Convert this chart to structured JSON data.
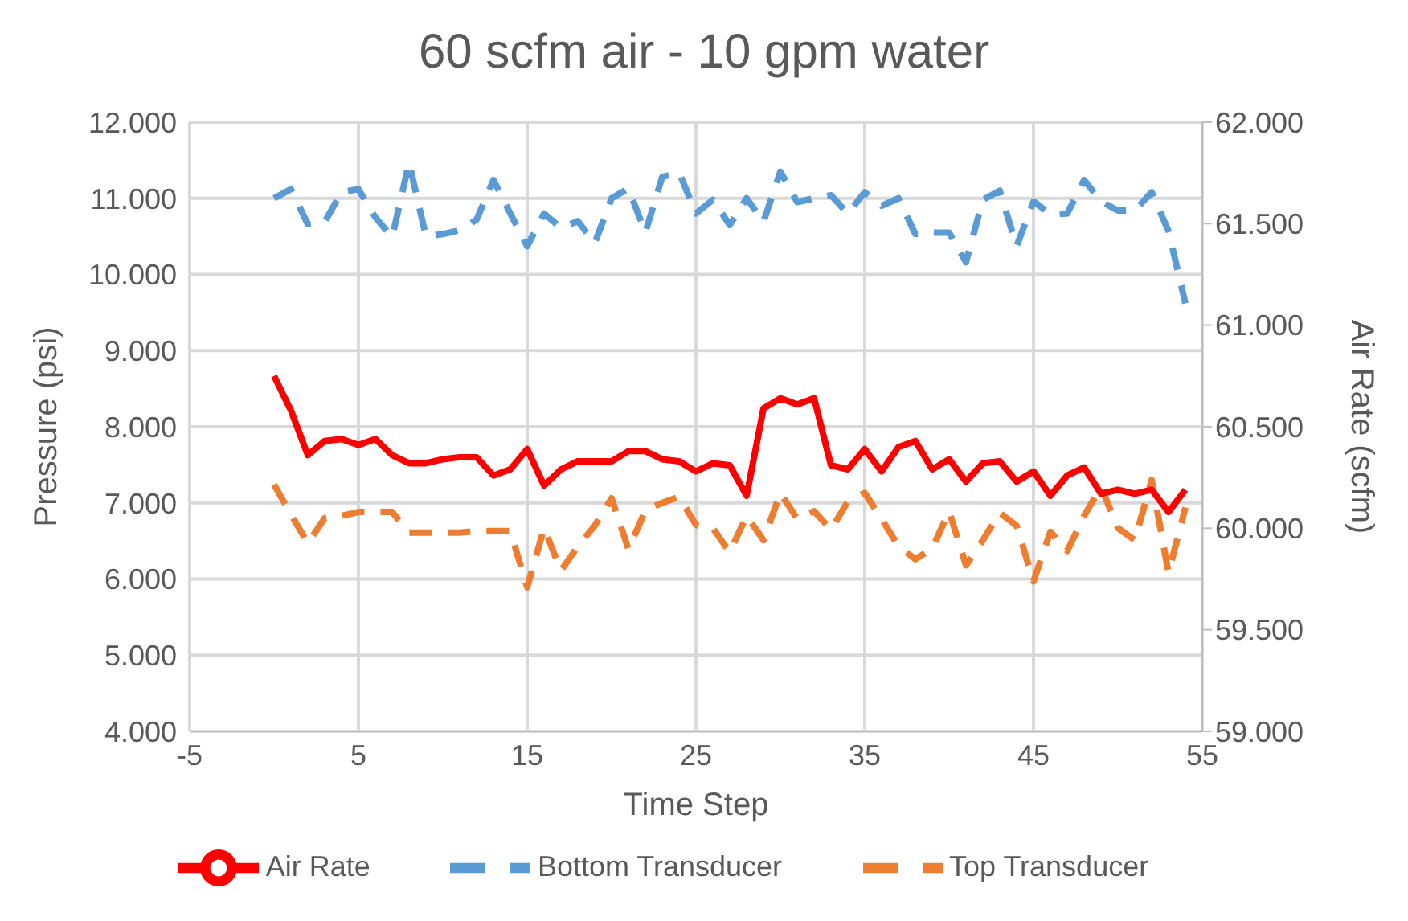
{
  "chart_data": {
    "type": "line",
    "title": "60 scfm air - 10 gpm water",
    "xlabel": "Time Step",
    "ylabel": "Pressure (psi)",
    "y2label": "Air Rate (scfm)",
    "x": [
      0,
      1,
      2,
      3,
      4,
      5,
      6,
      7,
      8,
      9,
      10,
      11,
      12,
      13,
      14,
      15,
      16,
      17,
      18,
      19,
      20,
      21,
      22,
      23,
      24,
      25,
      26,
      27,
      28,
      29,
      30,
      31,
      32,
      33,
      34,
      35,
      36,
      37,
      38,
      39,
      40,
      41,
      42,
      43,
      44,
      45,
      46,
      47,
      48,
      49,
      50,
      51,
      52,
      53,
      54
    ],
    "series": [
      {
        "name": "Bottom Transducer",
        "color": "#5b9bd5",
        "line_style": "dashed",
        "values": [
          11.0,
          11.12,
          10.66,
          10.69,
          11.08,
          11.12,
          10.75,
          10.49,
          11.47,
          10.5,
          10.53,
          10.58,
          10.72,
          11.24,
          10.8,
          10.37,
          10.8,
          10.61,
          10.7,
          10.41,
          11.0,
          11.13,
          10.55,
          11.28,
          11.34,
          10.8,
          10.98,
          10.65,
          11.0,
          10.69,
          11.35,
          10.95,
          11.0,
          11.04,
          10.8,
          11.08,
          10.9,
          11.0,
          10.53,
          10.55,
          10.55,
          10.16,
          10.98,
          11.1,
          10.37,
          10.96,
          10.79,
          10.8,
          11.24,
          10.96,
          10.84,
          10.84,
          11.08,
          10.57,
          9.62
        ]
      },
      {
        "name": "Top Transducer",
        "color": "#ed7d31",
        "line_style": "dashed",
        "values": [
          7.24,
          6.85,
          6.47,
          6.8,
          6.83,
          6.88,
          6.88,
          6.88,
          6.61,
          6.61,
          6.61,
          6.61,
          6.63,
          6.63,
          6.63,
          5.89,
          6.67,
          6.11,
          6.43,
          6.7,
          7.06,
          6.39,
          6.9,
          7.0,
          7.08,
          6.71,
          6.67,
          6.35,
          6.83,
          6.51,
          7.13,
          6.79,
          6.89,
          6.65,
          7.02,
          7.13,
          6.79,
          6.43,
          6.26,
          6.4,
          6.89,
          6.18,
          6.51,
          6.87,
          6.7,
          5.97,
          6.62,
          6.37,
          6.83,
          7.21,
          6.67,
          6.51,
          7.3,
          6.08,
          6.94
        ]
      },
      {
        "name": "Air Rate",
        "color": "#ff0000",
        "line_style": "solid",
        "axis": "y2",
        "values": [
          60.75,
          60.58,
          60.36,
          60.43,
          60.44,
          60.41,
          60.44,
          60.36,
          60.32,
          60.32,
          60.34,
          60.35,
          60.35,
          60.26,
          60.29,
          60.39,
          60.21,
          60.29,
          60.33,
          60.33,
          60.33,
          60.38,
          60.38,
          60.34,
          60.33,
          60.28,
          60.32,
          60.31,
          60.16,
          60.59,
          60.64,
          60.61,
          60.64,
          60.31,
          60.29,
          60.39,
          60.28,
          60.4,
          60.43,
          60.29,
          60.34,
          60.23,
          60.32,
          60.33,
          60.23,
          60.28,
          60.16,
          60.26,
          60.3,
          60.17,
          60.19,
          60.17,
          60.19,
          60.08,
          60.19
        ]
      }
    ],
    "xlim": [
      -5,
      55
    ],
    "xticks": [
      -5,
      5,
      15,
      25,
      35,
      45,
      55
    ],
    "ylim": [
      4,
      12
    ],
    "yticks": [
      {
        "value": 4,
        "label": "4.000"
      },
      {
        "value": 5,
        "label": "5.000"
      },
      {
        "value": 6,
        "label": "6.000"
      },
      {
        "value": 7,
        "label": "7.000"
      },
      {
        "value": 8,
        "label": "8.000"
      },
      {
        "value": 9,
        "label": "9.000"
      },
      {
        "value": 10,
        "label": "10.000"
      },
      {
        "value": 11,
        "label": "11.000"
      },
      {
        "value": 12,
        "label": "12.000"
      }
    ],
    "y2lim": [
      59,
      62
    ],
    "y2ticks": [
      {
        "value": 59,
        "label": "59.000"
      },
      {
        "value": 59.5,
        "label": "59.500"
      },
      {
        "value": 60,
        "label": "60.000"
      },
      {
        "value": 60.5,
        "label": "60.500"
      },
      {
        "value": 61,
        "label": "61.000"
      },
      {
        "value": 61.5,
        "label": "61.500"
      },
      {
        "value": 62,
        "label": "62.000"
      }
    ],
    "grid": true,
    "legend": "bottom",
    "marker": "none"
  }
}
